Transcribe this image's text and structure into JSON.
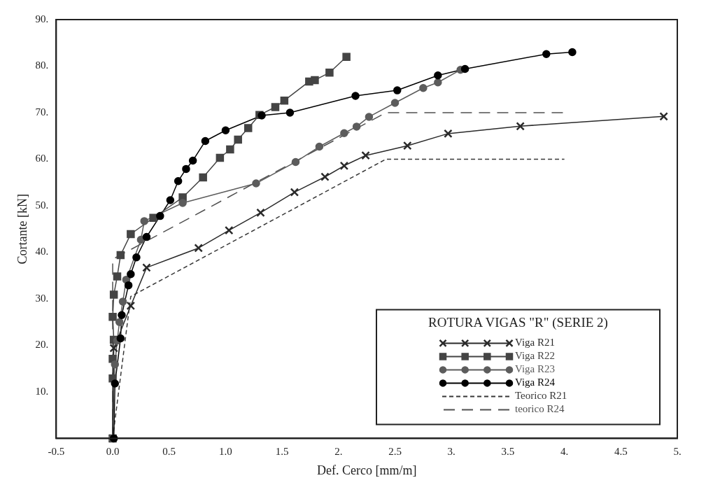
{
  "chart_data": {
    "type": "line",
    "xlabel": "Def. Cerco [mm/m]",
    "ylabel": "Cortante [kN]",
    "legend_title": "ROTURA VIGAS \"R\" (SERIE 2)",
    "legend": "bottom right",
    "grid": false,
    "xlim": [
      -0.5,
      5.0
    ],
    "xticks": [
      -0.5,
      {
        "value": 0,
        "label": "0.0"
      },
      0.5,
      {
        "value": 1,
        "label": "1.0"
      },
      1.5,
      {
        "value": 2,
        "label": "2."
      },
      2.5,
      {
        "value": 3,
        "label": "3."
      },
      3.5,
      {
        "value": 4,
        "label": "4."
      },
      4.5,
      {
        "value": 5,
        "label": "5."
      }
    ],
    "ylim": [
      0,
      90
    ],
    "yticks": [
      {
        "value": 0,
        "label": null
      },
      {
        "value": 10,
        "label": "10."
      },
      {
        "value": 20,
        "label": "20."
      },
      {
        "value": 30,
        "label": "30."
      },
      {
        "value": 40,
        "label": "40."
      },
      {
        "value": 50,
        "label": "50."
      },
      {
        "value": 60,
        "label": "60."
      },
      {
        "value": 70,
        "label": "70."
      },
      {
        "value": 80,
        "label": "80."
      },
      {
        "value": 90,
        "label": "90."
      }
    ],
    "series": [
      {
        "name": "Viga R21",
        "color": "#2a2a2a",
        "marker": "cross",
        "line_style": "solid",
        "x": [
          0,
          0.01,
          0.16,
          0.3,
          0.76,
          1.03,
          1.31,
          1.61,
          1.88,
          2.05,
          2.24,
          2.61,
          2.97,
          3.61,
          4.88
        ],
        "values": [
          0,
          19.4,
          28.5,
          36.7,
          40.9,
          44.7,
          48.5,
          52.9,
          56.2,
          58.6,
          60.8,
          62.9,
          65.5,
          67.1,
          69.2
        ]
      },
      {
        "name": "Viga R22",
        "color": "#444444",
        "marker": "square",
        "line_style": "solid",
        "x": [
          0,
          0,
          0,
          0.01,
          0,
          0.01,
          0.04,
          0.07,
          0.16,
          0.36,
          0.62,
          0.8,
          0.95,
          1.04,
          1.11,
          1.2,
          1.3,
          1.44,
          1.52,
          1.74,
          1.79,
          1.92,
          2.07
        ],
        "values": [
          0,
          12.9,
          17.1,
          21.2,
          26.1,
          30.9,
          34.8,
          39.4,
          43.9,
          47.4,
          51.8,
          56.1,
          60.3,
          62.1,
          64.2,
          66.7,
          69.5,
          71.2,
          72.6,
          76.7,
          77.0,
          78.6,
          82.0
        ]
      },
      {
        "name": "Viga R23",
        "color": "#5c5c5c",
        "marker": "circle",
        "line_style": "solid",
        "x": [
          0,
          0.02,
          0.04,
          0.06,
          0.09,
          0.12,
          0.25,
          0.28,
          0.62,
          1.27,
          1.62,
          1.83,
          2.05,
          2.16,
          2.27,
          2.5,
          2.75,
          2.88,
          3.08
        ],
        "values": [
          0,
          15.9,
          21,
          25,
          29.4,
          34.1,
          42.7,
          46.7,
          50.6,
          54.8,
          59.4,
          62.7,
          65.6,
          67,
          69.1,
          72.1,
          75.3,
          76.5,
          79.2
        ]
      },
      {
        "name": "Viga R24",
        "color": "#000000",
        "marker": "circle",
        "line_style": "solid",
        "x": [
          0.01,
          0.02,
          0.07,
          0.08,
          0.14,
          0.16,
          0.21,
          0.3,
          0.42,
          0.51,
          0.58,
          0.65,
          0.71,
          0.82,
          1.0,
          1.32,
          1.57,
          2.15,
          2.52,
          2.88,
          3.12,
          3.84,
          4.07
        ],
        "values": [
          0,
          11.8,
          21.5,
          26.5,
          32.9,
          35.3,
          38.9,
          43.3,
          47.8,
          51.2,
          55.3,
          57.9,
          59.7,
          63.9,
          66.2,
          69.4,
          70.0,
          73.6,
          74.8,
          78.0,
          79.4,
          82.6,
          83.0
        ]
      },
      {
        "name": "Teorico R21",
        "color": "#383838",
        "marker": "none",
        "line_style": "dashed",
        "x": [
          0,
          0.16,
          2.42,
          4.0
        ],
        "values": [
          0,
          30.5,
          60,
          60
        ]
      },
      {
        "name": "teorico R24",
        "color": "#505050",
        "marker": "none",
        "line_style": "longdash",
        "x": [
          0,
          0,
          2.42,
          4.0
        ],
        "values": [
          0,
          38.5,
          70,
          70
        ]
      }
    ]
  }
}
